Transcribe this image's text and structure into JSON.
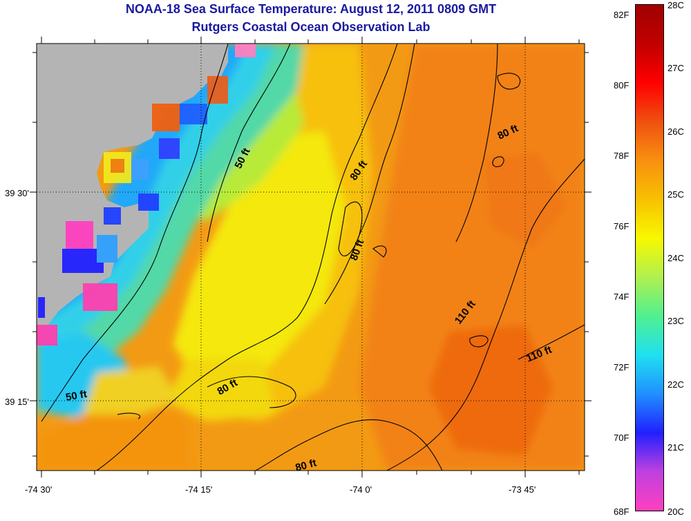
{
  "header": {
    "title": "NOAA-18 Sea Surface Temperature:  August 12, 2011 0809 GMT",
    "subtitle": "Rutgers Coastal Ocean Observation Lab"
  },
  "axes": {
    "x_ticks": [
      "-74 30'",
      "-74 15'",
      "-74 0'",
      "-73 45'"
    ],
    "y_ticks": [
      "39 30'",
      "39 15'"
    ]
  },
  "contours": [
    {
      "label": "50 ft",
      "rotation": -63
    },
    {
      "label": "50 ft",
      "rotation": -10
    },
    {
      "label": "80 ft",
      "rotation": -55
    },
    {
      "label": "80 ft",
      "rotation": -70
    },
    {
      "label": "80 ft",
      "rotation": -25
    },
    {
      "label": "80 ft",
      "rotation": -30
    },
    {
      "label": "80 ft",
      "rotation": -15
    },
    {
      "label": "110 ft",
      "rotation": -52
    },
    {
      "label": "110 ft",
      "rotation": -22
    }
  ],
  "colorbar": {
    "fahrenheit": [
      "82F",
      "80F",
      "78F",
      "76F",
      "74F",
      "72F",
      "70F",
      "68F"
    ],
    "celsius": [
      "28C",
      "27C",
      "26C",
      "25C",
      "24C",
      "23C",
      "22C",
      "21C",
      "20C"
    ],
    "land_color": "#b4b4b4",
    "stops": [
      "#ff40c0",
      "#c040e0",
      "#2020ff",
      "#2090ff",
      "#20e0f0",
      "#50f090",
      "#b0f050",
      "#f8f800",
      "#f8c000",
      "#f89010",
      "#f05010",
      "#ff0000",
      "#c00000",
      "#a00000"
    ]
  }
}
